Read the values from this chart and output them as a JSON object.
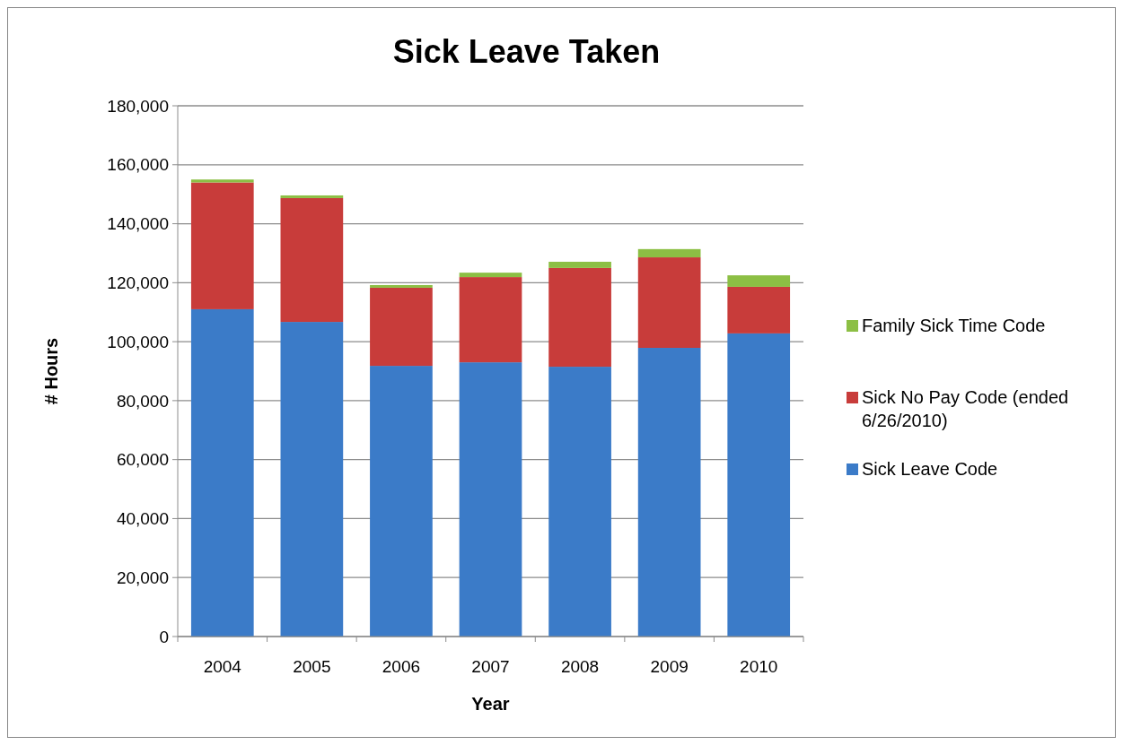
{
  "chart_data": {
    "type": "bar",
    "title": "Sick Leave Taken",
    "xlabel": "Year",
    "ylabel": "# Hours",
    "categories": [
      "2004",
      "2005",
      "2006",
      "2007",
      "2008",
      "2009",
      "2010"
    ],
    "stacked": true,
    "series": [
      {
        "name": "Sick Leave Code",
        "color": "#3b7bc8",
        "values": [
          111000,
          106700,
          91800,
          93000,
          91500,
          97900,
          102800
        ]
      },
      {
        "name": "Sick No Pay Code (ended 6/26/2010)",
        "color": "#c83c3a",
        "values": [
          43000,
          42000,
          26500,
          28900,
          33500,
          30700,
          15800
        ]
      },
      {
        "name": "Family Sick Time Code",
        "color": "#8cbf44",
        "values": [
          1000,
          900,
          900,
          1500,
          2100,
          2800,
          3900
        ]
      }
    ],
    "ylim": [
      0,
      180000
    ],
    "yticks": [
      {
        "value": 0,
        "label": "0"
      },
      {
        "value": 20000,
        "label": "20,000"
      },
      {
        "value": 40000,
        "label": "40,000"
      },
      {
        "value": 60000,
        "label": "60,000"
      },
      {
        "value": 80000,
        "label": "80,000"
      },
      {
        "value": 100000,
        "label": "100,000"
      },
      {
        "value": 120000,
        "label": "120,000"
      },
      {
        "value": 140000,
        "label": "140,000"
      },
      {
        "value": 160000,
        "label": "160,000"
      },
      {
        "value": 180000,
        "label": "180,000"
      }
    ],
    "grid": "y",
    "legend": "right"
  }
}
